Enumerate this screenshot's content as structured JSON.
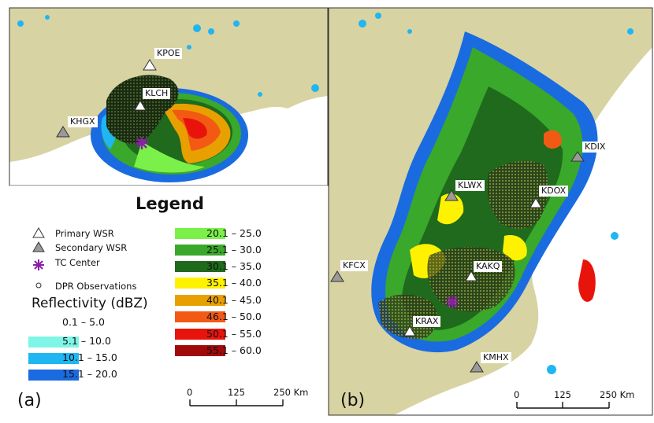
{
  "panels": {
    "a": {
      "tag": "(a)"
    },
    "b": {
      "tag": "(b)"
    }
  },
  "legend": {
    "title": "Legend",
    "symbols": [
      {
        "label": "Primary WSR",
        "icon": "white-triangle-icon"
      },
      {
        "label": "Secondary WSR",
        "icon": "gray-triangle-icon"
      },
      {
        "label": "TC Center",
        "icon": "purple-asterisk-icon"
      },
      {
        "label": "DPR Observations",
        "icon": "small-circle-icon"
      }
    ],
    "reflectivity_title": "Reflectivity (dBZ)",
    "classes": [
      {
        "label": "0.1 – 5.0",
        "color": "#ffffff"
      },
      {
        "label": "5.1 – 10.0",
        "color": "#7ff5e6"
      },
      {
        "label": "10.1 – 15.0",
        "color": "#1fb6f2"
      },
      {
        "label": "15.1 – 20.0",
        "color": "#1a6be0"
      },
      {
        "label": "20.1 – 25.0",
        "color": "#7cf04a"
      },
      {
        "label": "25.1 – 30.0",
        "color": "#3aa82a"
      },
      {
        "label": "30.1 – 35.0",
        "color": "#1f6a1c"
      },
      {
        "label": "35.1 – 40.0",
        "color": "#fff200"
      },
      {
        "label": "40.1 – 45.0",
        "color": "#e8a000"
      },
      {
        "label": "46.1 – 50.0",
        "color": "#f25a14"
      },
      {
        "label": "50.1 – 55.0",
        "color": "#e8140c"
      },
      {
        "label": "55.1 – 60.0",
        "color": "#a00a0a"
      }
    ]
  },
  "stations_a": [
    {
      "id": "KPOE",
      "type": "primary"
    },
    {
      "id": "KLCH",
      "type": "primary"
    },
    {
      "id": "KHGX",
      "type": "secondary"
    }
  ],
  "stations_b": [
    {
      "id": "KDIX",
      "type": "secondary"
    },
    {
      "id": "KLWX",
      "type": "secondary"
    },
    {
      "id": "KDOX",
      "type": "primary"
    },
    {
      "id": "KFCX",
      "type": "secondary"
    },
    {
      "id": "KAKQ",
      "type": "primary"
    },
    {
      "id": "KRAX",
      "type": "primary"
    },
    {
      "id": "KMHX",
      "type": "secondary"
    }
  ],
  "scalebar": {
    "ticks": [
      "0",
      "125",
      "250 Km"
    ]
  },
  "colors": {
    "land": "#d8d3a3",
    "water": "#ffffff",
    "tc_center": "#8b1fa8",
    "secondary_wsr": "#9a9a9a"
  }
}
